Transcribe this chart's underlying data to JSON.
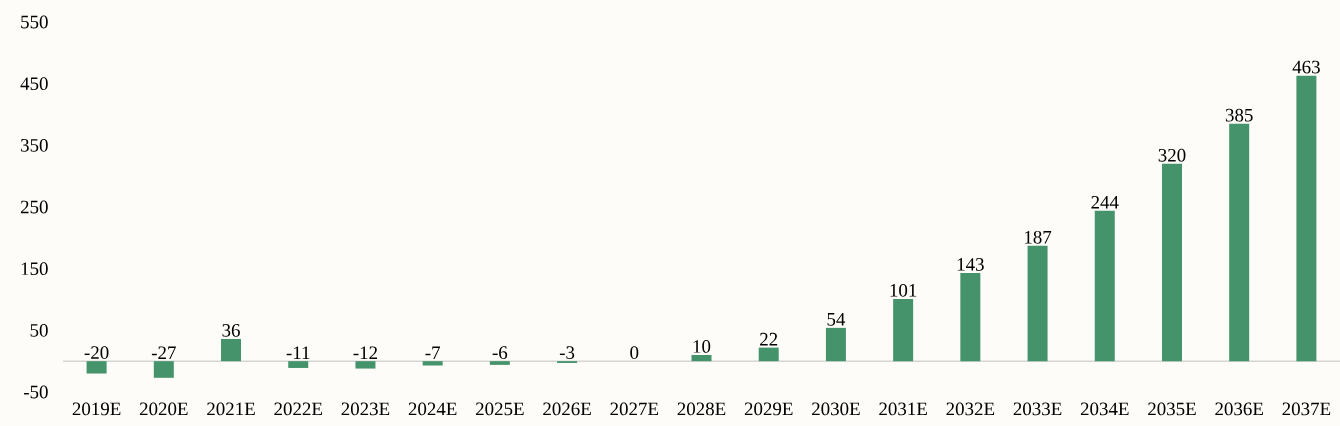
{
  "chart_data": {
    "type": "bar",
    "categories": [
      "2019E",
      "2020E",
      "2021E",
      "2022E",
      "2023E",
      "2024E",
      "2025E",
      "2026E",
      "2027E",
      "2028E",
      "2029E",
      "2030E",
      "2031E",
      "2032E",
      "2033E",
      "2034E",
      "2035E",
      "2036E",
      "2037E"
    ],
    "values": [
      -20,
      -27,
      36,
      -11,
      -12,
      -7,
      -6,
      -3,
      0,
      10,
      22,
      54,
      101,
      143,
      187,
      244,
      320,
      385,
      463
    ],
    "color": "#45936a",
    "ylim": [
      -50,
      550
    ],
    "yticks": [
      -50,
      50,
      150,
      250,
      350,
      450,
      550
    ],
    "data_labels": true
  }
}
